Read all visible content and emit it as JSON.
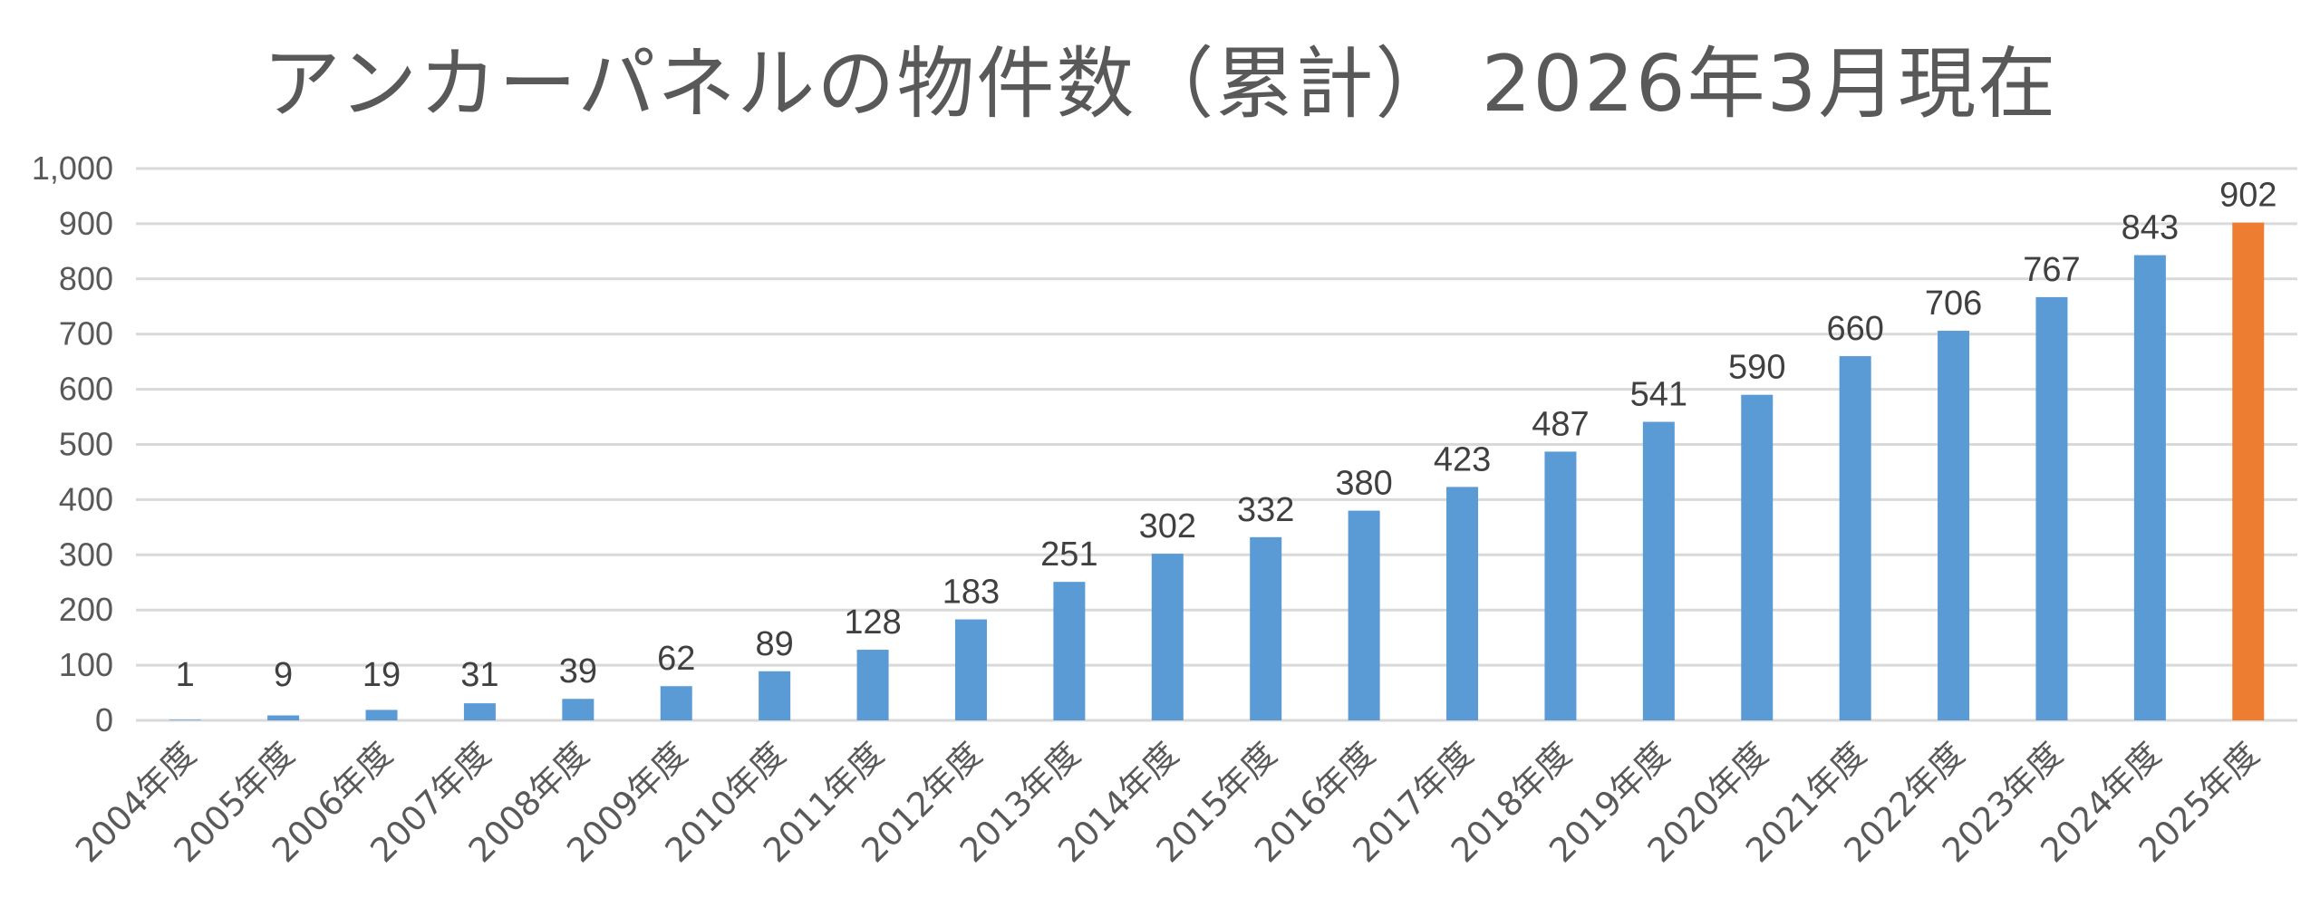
{
  "chart_data": {
    "type": "bar",
    "title": "アンカーパネルの物件数（累計） 2026年3月現在",
    "xlabel": "",
    "ylabel": "",
    "ylim": [
      0,
      1000
    ],
    "yticks": [
      "0",
      "100",
      "200",
      "300",
      "400",
      "500",
      "600",
      "700",
      "800",
      "900",
      "1,000"
    ],
    "grid": true,
    "legend": "none",
    "categories": [
      "2004年度",
      "2005年度",
      "2006年度",
      "2007年度",
      "2008年度",
      "2009年度",
      "2010年度",
      "2011年度",
      "2012年度",
      "2013年度",
      "2014年度",
      "2015年度",
      "2016年度",
      "2017年度",
      "2018年度",
      "2019年度",
      "2020年度",
      "2021年度",
      "2022年度",
      "2023年度",
      "2024年度",
      "2025年度"
    ],
    "values": [
      1,
      9,
      19,
      31,
      39,
      62,
      89,
      128,
      183,
      251,
      302,
      332,
      380,
      423,
      487,
      541,
      590,
      660,
      706,
      767,
      843,
      902
    ],
    "data_labels": [
      "1",
      "9",
      "19",
      "31",
      "39",
      "62",
      "89",
      "128",
      "183",
      "251",
      "302",
      "332",
      "380",
      "423",
      "487",
      "541",
      "590",
      "660",
      "706",
      "767",
      "843",
      "902"
    ],
    "colors": {
      "bar": "#5b9bd5",
      "highlight_bar": "#ed7d31",
      "highlight_index": 21,
      "grid": "#d9d9d9",
      "text": "#595959"
    }
  }
}
